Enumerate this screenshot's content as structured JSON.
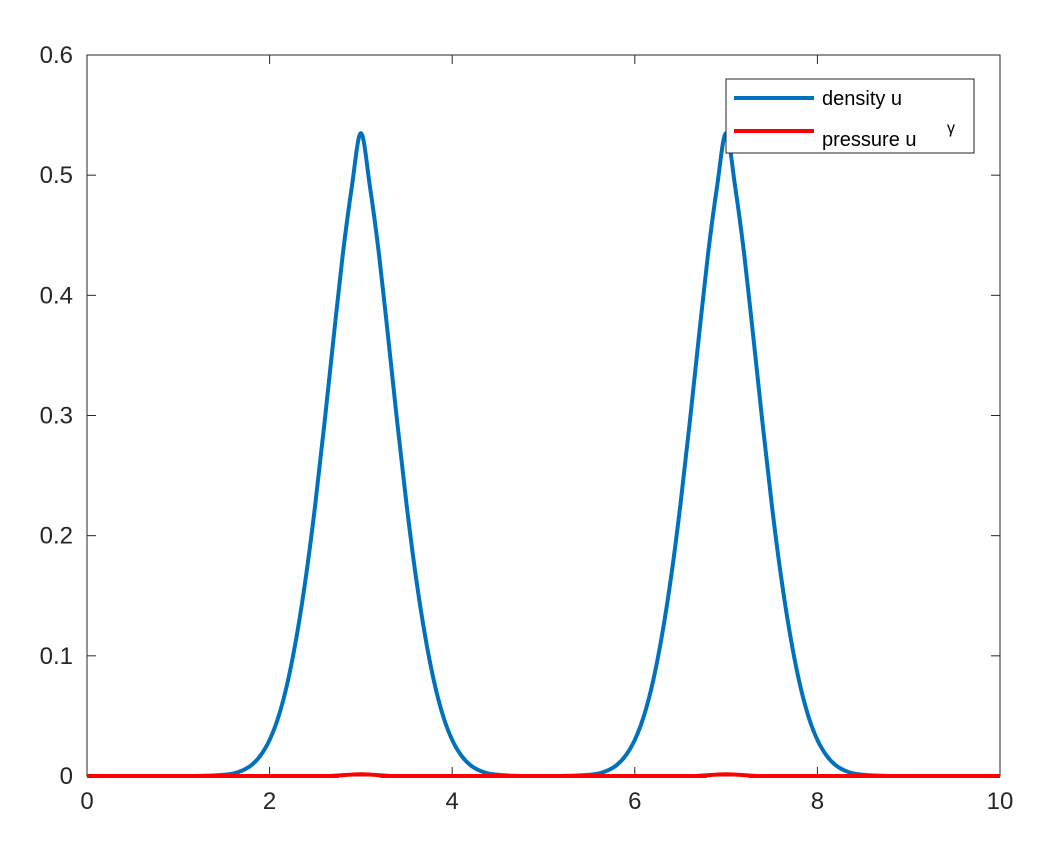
{
  "chart_data": {
    "type": "line",
    "title": "",
    "xlabel": "",
    "ylabel": "",
    "xlim": [
      0,
      10
    ],
    "ylim": [
      0,
      0.6
    ],
    "xticks": [
      0,
      2,
      4,
      6,
      8,
      10
    ],
    "xtick_labels": [
      "0",
      "2",
      "4",
      "6",
      "8",
      "10"
    ],
    "yticks": [
      0,
      0.1,
      0.2,
      0.3,
      0.4,
      0.5,
      0.6
    ],
    "ytick_labels": [
      "0",
      "0.1",
      "0.2",
      "0.3",
      "0.4",
      "0.5",
      "0.6"
    ],
    "grid": false,
    "legend_position": "top-right",
    "series": [
      {
        "name": "density u",
        "color": "#0072bd",
        "x": [
          0,
          0.5,
          1.0,
          1.2,
          1.4,
          1.5,
          1.6,
          1.7,
          1.8,
          1.9,
          2.0,
          2.1,
          2.2,
          2.3,
          2.4,
          2.5,
          2.6,
          2.7,
          2.8,
          2.9,
          3.0,
          3.1,
          3.2,
          3.3,
          3.4,
          3.5,
          3.6,
          3.7,
          3.8,
          3.9,
          4.0,
          4.1,
          4.2,
          4.3,
          4.4,
          4.5,
          4.6,
          4.8,
          5.0,
          5.2,
          5.4,
          5.5,
          5.6,
          5.7,
          5.8,
          5.9,
          6.0,
          6.1,
          6.2,
          6.3,
          6.4,
          6.5,
          6.6,
          6.7,
          6.8,
          6.9,
          7.0,
          7.1,
          7.2,
          7.3,
          7.4,
          7.5,
          7.6,
          7.7,
          7.8,
          7.9,
          8.0,
          8.1,
          8.2,
          8.3,
          8.4,
          8.5,
          8.6,
          8.8,
          9.0,
          9.5,
          10.0
        ],
        "y": [
          0,
          0,
          0,
          0,
          0.0005,
          0.001,
          0.002,
          0.0045,
          0.009,
          0.017,
          0.03,
          0.05,
          0.079,
          0.118,
          0.167,
          0.226,
          0.293,
          0.364,
          0.433,
          0.49,
          0.535,
          0.49,
          0.433,
          0.364,
          0.293,
          0.226,
          0.167,
          0.118,
          0.079,
          0.05,
          0.03,
          0.017,
          0.009,
          0.0045,
          0.002,
          0.001,
          0.0005,
          0,
          0,
          0,
          0.0005,
          0.001,
          0.002,
          0.0045,
          0.009,
          0.017,
          0.03,
          0.05,
          0.079,
          0.118,
          0.167,
          0.226,
          0.293,
          0.364,
          0.433,
          0.49,
          0.535,
          0.49,
          0.433,
          0.364,
          0.293,
          0.226,
          0.167,
          0.118,
          0.079,
          0.05,
          0.03,
          0.017,
          0.009,
          0.0045,
          0.002,
          0.001,
          0.0005,
          0,
          0,
          0,
          0
        ]
      },
      {
        "name": "pressure u",
        "name_superscript": "γ",
        "color": "#ff0000",
        "x": [
          0,
          2.5,
          2.7,
          2.9,
          3.0,
          3.1,
          3.3,
          3.5,
          6.5,
          6.7,
          6.9,
          7.0,
          7.1,
          7.3,
          7.5,
          10.0
        ],
        "y": [
          0,
          0,
          0.0002,
          0.0012,
          0.0015,
          0.0012,
          0.0002,
          0,
          0,
          0.0002,
          0.0012,
          0.0015,
          0.0012,
          0.0002,
          0,
          0
        ]
      }
    ]
  }
}
